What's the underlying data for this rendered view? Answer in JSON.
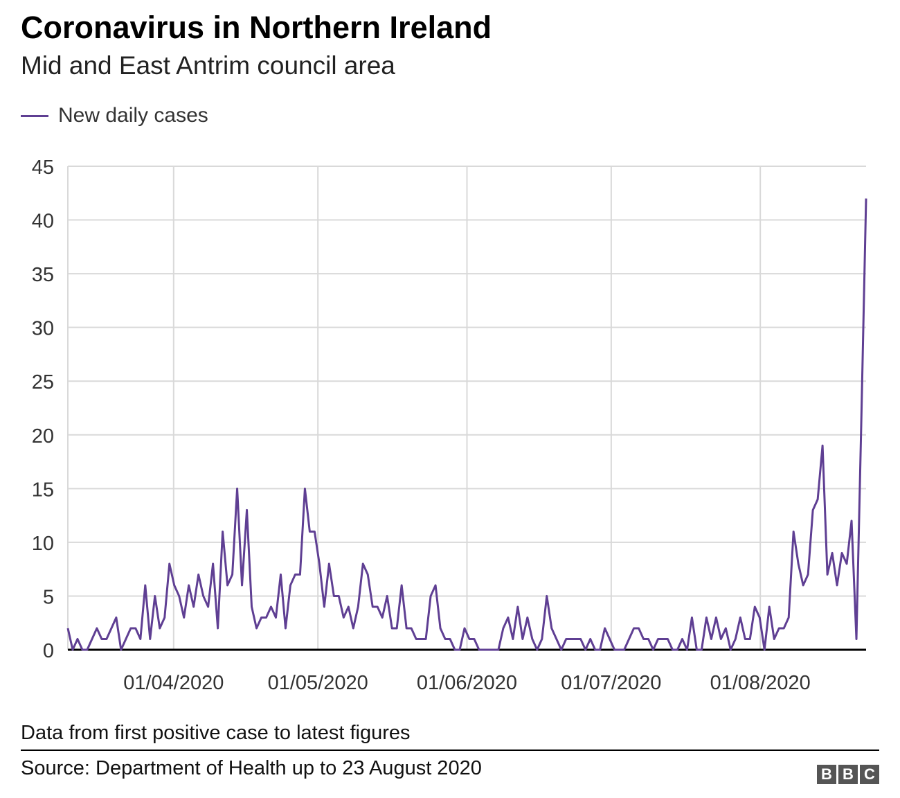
{
  "chart_data": {
    "type": "line",
    "title": "Coronavirus in Northern Ireland",
    "subtitle": "Mid and East Antrim council area",
    "legend": [
      {
        "label": "New daily cases",
        "color": "#5f3f93"
      }
    ],
    "legend_position": "top-left",
    "xlabel": "",
    "ylabel": "",
    "ylim": [
      0,
      45
    ],
    "yticks": [
      "0",
      "5",
      "10",
      "15",
      "20",
      "25",
      "30",
      "35",
      "40",
      "45"
    ],
    "x_start": "2020-03-10",
    "x_end": "2020-08-23",
    "xticks": [
      {
        "label": "01/04/2020",
        "date": "2020-04-01"
      },
      {
        "label": "01/05/2020",
        "date": "2020-05-01"
      },
      {
        "label": "01/06/2020",
        "date": "2020-06-01"
      },
      {
        "label": "01/07/2020",
        "date": "2020-07-01"
      },
      {
        "label": "01/08/2020",
        "date": "2020-08-01"
      }
    ],
    "grid": true,
    "series": [
      {
        "name": "New daily cases",
        "values": [
          2,
          0,
          1,
          0,
          0,
          1,
          2,
          1,
          1,
          2,
          3,
          0,
          1,
          2,
          2,
          1,
          6,
          1,
          5,
          2,
          3,
          8,
          6,
          5,
          3,
          6,
          4,
          7,
          5,
          4,
          8,
          2,
          11,
          6,
          7,
          15,
          6,
          13,
          4,
          2,
          3,
          3,
          4,
          3,
          7,
          2,
          6,
          7,
          7,
          15,
          11,
          11,
          8,
          4,
          8,
          5,
          5,
          3,
          4,
          2,
          4,
          8,
          7,
          4,
          4,
          3,
          5,
          2,
          2,
          6,
          2,
          2,
          1,
          1,
          1,
          5,
          6,
          2,
          1,
          1,
          0,
          0,
          2,
          1,
          1,
          0,
          0,
          0,
          0,
          0,
          2,
          3,
          1,
          4,
          1,
          3,
          1,
          0,
          1,
          5,
          2,
          1,
          0,
          1,
          1,
          1,
          1,
          0,
          1,
          0,
          0,
          2,
          1,
          0,
          0,
          0,
          1,
          2,
          2,
          1,
          1,
          0,
          1,
          1,
          1,
          0,
          0,
          1,
          0,
          3,
          0,
          0,
          3,
          1,
          3,
          1,
          2,
          0,
          1,
          3,
          1,
          1,
          4,
          3,
          0,
          4,
          1,
          2,
          2,
          3,
          11,
          8,
          6,
          7,
          13,
          14,
          19,
          7,
          9,
          6,
          9,
          8,
          12,
          1,
          21,
          42
        ]
      }
    ]
  },
  "footer": {
    "note": "Data from first positive case to latest figures",
    "source": "Source: Department of Health up to 23 August 2020",
    "logo_letters": [
      "B",
      "B",
      "C"
    ]
  }
}
